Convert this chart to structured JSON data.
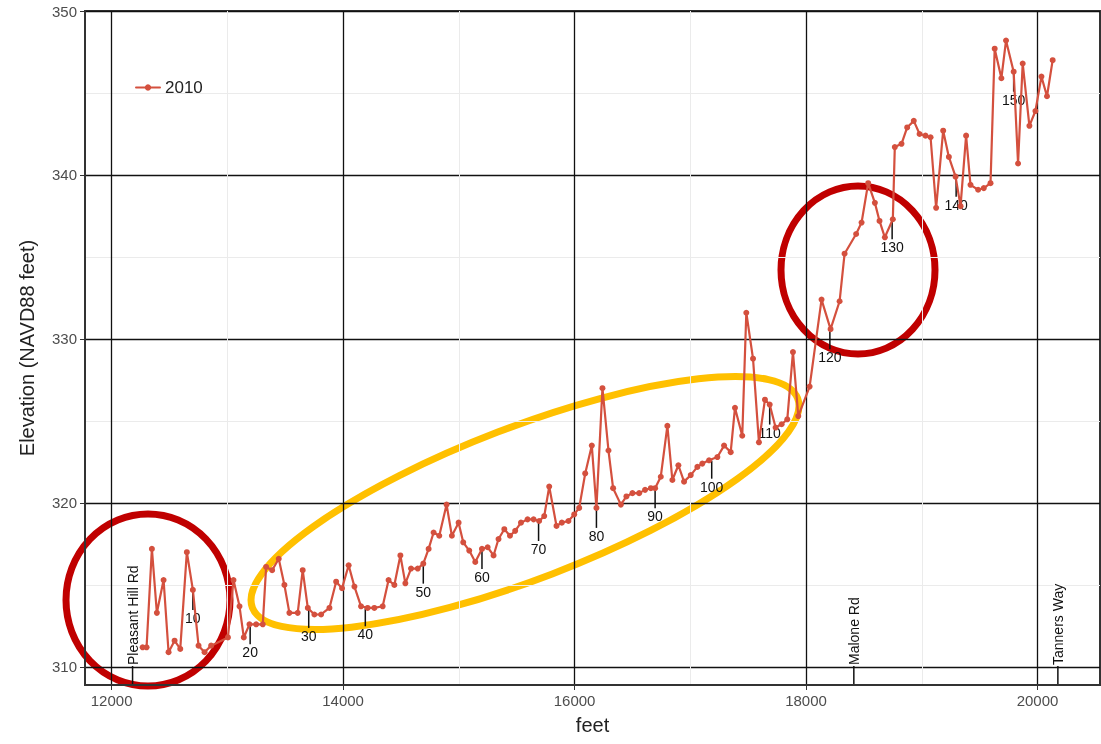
{
  "chart_data": {
    "type": "line",
    "xlabel": "feet",
    "ylabel": "Elevation (NAVD88 feet)",
    "xlim": [
      11770,
      20540
    ],
    "xticks": [
      12000,
      14000,
      16000,
      18000,
      20000
    ],
    "ylim": [
      308.9,
      350
    ],
    "yticks": [
      310,
      320,
      330,
      340,
      350
    ],
    "grid": true,
    "legend": "top left",
    "marker": "circle",
    "line_style": "solid",
    "x": [
      12268,
      12302,
      12348,
      12391,
      12449,
      12492,
      12544,
      12593,
      12650,
      12702,
      12751,
      12803,
      12860,
      13005,
      13053,
      13105,
      13142,
      13191,
      13249,
      13306,
      13335,
      13387,
      13444,
      13493,
      13536,
      13608,
      13651,
      13695,
      13752,
      13810,
      13882,
      13940,
      13991,
      14048,
      14098,
      14155,
      14212,
      14270,
      14342,
      14393,
      14443,
      14495,
      14538,
      14587,
      14645,
      14693,
      14739,
      14782,
      14831,
      14894,
      14940,
      14998,
      15038,
      15090,
      15142,
      15200,
      15249,
      15300,
      15343,
      15393,
      15442,
      15487,
      15537,
      15594,
      15646,
      15694,
      15738,
      15781,
      15844,
      15890,
      15947,
      15997,
      16040,
      16092,
      16149,
      16189,
      16241,
      16293,
      16333,
      16400,
      16448,
      16500,
      16558,
      16609,
      16659,
      16696,
      16745,
      16802,
      16845,
      16897,
      16946,
      17004,
      17061,
      17104,
      17162,
      17234,
      17292,
      17349,
      17386,
      17449,
      17484,
      17542,
      17593,
      17645,
      17686,
      17737,
      17789,
      17838,
      17887,
      17933,
      18031,
      18134,
      18212,
      18290,
      18333,
      18433,
      18480,
      18537,
      18595,
      18635,
      18681,
      18750,
      18767,
      18825,
      18874,
      18931,
      18981,
      19032,
      19076,
      19124,
      19185,
      19234,
      19292,
      19335,
      19383,
      19421,
      19487,
      19536,
      19594,
      19630,
      19688,
      19728,
      19794,
      19832,
      19872,
      19930,
      19982,
      20034,
      20082,
      20131
    ],
    "series": [
      {
        "name": "2010",
        "color": "#d4503e",
        "values": [
          311.2,
          311.2,
          317.2,
          313.3,
          315.3,
          310.9,
          311.6,
          311.1,
          317.0,
          314.7,
          311.3,
          310.9,
          311.3,
          311.8,
          315.3,
          313.7,
          311.8,
          312.6,
          312.6,
          312.6,
          316.1,
          315.9,
          316.6,
          315.0,
          313.3,
          313.3,
          315.9,
          313.6,
          313.2,
          313.2,
          313.6,
          315.2,
          314.8,
          316.2,
          314.9,
          313.7,
          313.6,
          313.6,
          313.7,
          315.3,
          315.0,
          316.8,
          315.1,
          316.0,
          316.0,
          316.3,
          317.2,
          318.2,
          318.0,
          319.9,
          318.0,
          318.8,
          317.6,
          317.1,
          316.4,
          317.2,
          317.3,
          316.8,
          317.8,
          318.4,
          318.0,
          318.3,
          318.8,
          319.0,
          319.0,
          318.9,
          319.2,
          321.0,
          318.6,
          318.8,
          318.9,
          319.3,
          319.7,
          321.8,
          323.5,
          319.7,
          327.0,
          323.2,
          320.9,
          319.9,
          320.4,
          320.6,
          320.6,
          320.8,
          320.9,
          320.9,
          321.6,
          324.7,
          321.4,
          322.3,
          321.3,
          321.7,
          322.2,
          322.4,
          322.6,
          322.8,
          323.5,
          323.1,
          325.8,
          324.1,
          331.6,
          328.8,
          323.7,
          326.3,
          326.0,
          324.6,
          324.8,
          325.1,
          329.2,
          325.3,
          327.1,
          332.4,
          330.6,
          332.3,
          335.2,
          336.4,
          337.1,
          339.5,
          338.3,
          337.2,
          336.2,
          337.3,
          341.7,
          341.9,
          342.9,
          343.3,
          342.5,
          342.4,
          342.3,
          338.0,
          342.7,
          341.1,
          339.9,
          338.1,
          342.4,
          339.4,
          339.1,
          339.2,
          339.5,
          347.7,
          345.9,
          348.2,
          346.3,
          340.7,
          346.8,
          343.0,
          343.9,
          346.0,
          344.8,
          347.0
        ]
      }
    ],
    "annotations": [
      {
        "text": "10",
        "x": 12702,
        "y": 314.7
      },
      {
        "text": "20",
        "x": 13197,
        "y": 312.6
      },
      {
        "text": "30",
        "x": 13703,
        "y": 313.6
      },
      {
        "text": "40",
        "x": 14192,
        "y": 313.7
      },
      {
        "text": "50",
        "x": 14693,
        "y": 316.3
      },
      {
        "text": "60",
        "x": 15200,
        "y": 317.2
      },
      {
        "text": "70",
        "x": 15689,
        "y": 318.9
      },
      {
        "text": "80",
        "x": 16189,
        "y": 319.7
      },
      {
        "text": "90",
        "x": 16696,
        "y": 320.9
      },
      {
        "text": "100",
        "x": 17185,
        "y": 322.7
      },
      {
        "text": "110",
        "x": 17686,
        "y": 326.0
      },
      {
        "text": "120",
        "x": 18206,
        "y": 330.6
      },
      {
        "text": "130",
        "x": 18744,
        "y": 337.3
      },
      {
        "text": "140",
        "x": 19297,
        "y": 339.9
      },
      {
        "text": "150",
        "x": 19794,
        "y": 346.3
      }
    ],
    "ref_lines": [
      {
        "axis": "x",
        "value": 12181,
        "label": "Pleasant Hill Rd"
      },
      {
        "axis": "x",
        "value": 18413,
        "label": "Malone Rd"
      },
      {
        "axis": "x",
        "value": 20176,
        "label": "Tanners Way"
      }
    ]
  }
}
